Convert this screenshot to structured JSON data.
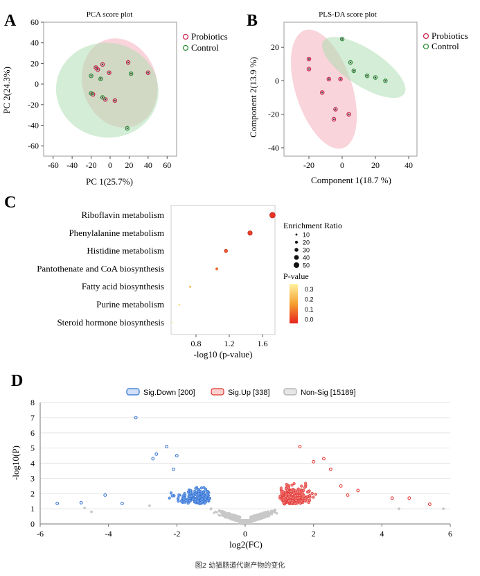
{
  "panel_labels": {
    "a": "A",
    "b": "B",
    "c": "C",
    "d": "D"
  },
  "caption": "图2  幼猫肠道代谢产物的变化",
  "colors": {
    "probiotics_fill": "#f4a9b8",
    "probiotics_stroke": "#c9264e",
    "control_fill": "#a9dcae",
    "control_stroke": "#2f8f3a",
    "sig_down": "#2f6fd0",
    "sig_up": "#e0302b",
    "non_sig": "#c8c8c8",
    "pval_high": "#fff3a0",
    "pval_low": "#e8231f"
  },
  "chart_data": [
    {
      "id": "pca",
      "type": "scatter",
      "title": "PCA score plot",
      "xlabel": "PC 1(25.7%)",
      "ylabel": "PC 2(24.3%)",
      "xlim": [
        -70,
        70
      ],
      "ylim": [
        -70,
        60
      ],
      "xticks": [
        -60,
        -40,
        -20,
        0,
        20,
        40,
        60
      ],
      "yticks": [
        -60,
        -40,
        -20,
        0,
        20,
        40,
        60
      ],
      "legend": [
        "Probiotics",
        "Control"
      ],
      "series": [
        {
          "name": "Probiotics",
          "points": [
            [
              -13,
              14
            ],
            [
              -8,
              19
            ],
            [
              -1,
              11
            ],
            [
              19,
              21
            ],
            [
              -15,
              16
            ],
            [
              40,
              11
            ],
            [
              -18,
              -10
            ],
            [
              -5,
              -15
            ],
            [
              5,
              -16
            ]
          ]
        },
        {
          "name": "Control",
          "points": [
            [
              -20,
              8
            ],
            [
              -20,
              -9
            ],
            [
              -10,
              5
            ],
            [
              -8,
              -13
            ],
            [
              22,
              10
            ],
            [
              18,
              -43
            ]
          ]
        }
      ],
      "ellipses": [
        {
          "name": "Probiotics",
          "center": [
            10,
            1
          ],
          "rx": 39,
          "ry": 44,
          "angle": 18
        },
        {
          "name": "Control",
          "center": [
            -3,
            -6
          ],
          "rx": 54,
          "ry": 46,
          "angle": -8
        }
      ]
    },
    {
      "id": "plsda",
      "type": "scatter",
      "title": "PLS-DA score plot",
      "xlabel": "Component 1(18.7 %)",
      "ylabel": "Component 2(13.9 %)",
      "xlim": [
        -35,
        45
      ],
      "ylim": [
        -45,
        35
      ],
      "xticks": [
        -20,
        0,
        20,
        40
      ],
      "yticks": [
        -40,
        -20,
        0,
        20
      ],
      "legend": [
        "Probiotics",
        "Control"
      ],
      "series": [
        {
          "name": "Probiotics",
          "points": [
            [
              -20,
              13
            ],
            [
              -20,
              7
            ],
            [
              -12,
              -7
            ],
            [
              -8,
              1
            ],
            [
              -4,
              -17
            ],
            [
              -5,
              -23
            ],
            [
              -1,
              1
            ],
            [
              4,
              -20
            ]
          ]
        },
        {
          "name": "Control",
          "points": [
            [
              0,
              25
            ],
            [
              5,
              11
            ],
            [
              7,
              6
            ],
            [
              15,
              3
            ],
            [
              20,
              2
            ],
            [
              26,
              0
            ]
          ]
        }
      ],
      "ellipses": [
        {
          "name": "Probiotics",
          "center": [
            -11,
            -5
          ],
          "rx": 17,
          "ry": 37,
          "angle": 18
        },
        {
          "name": "Control",
          "center": [
            13,
            8
          ],
          "rx": 29,
          "ry": 11,
          "angle": -33
        }
      ]
    },
    {
      "id": "enrichment",
      "type": "scatter",
      "xlabel": "-log10 (p-value)",
      "xlim": [
        0.5,
        1.75
      ],
      "xticks": [
        0.8,
        1.2,
        1.6
      ],
      "size_legend_title": "Enrichment Ratio",
      "size_legend": [
        10,
        20,
        30,
        40,
        50
      ],
      "color_legend_title": "P-value",
      "color_ticks": [
        "0.3",
        "0.2",
        "0.1",
        "0.0"
      ],
      "pathways": [
        {
          "name": "Riboflavin metabolism",
          "x": 1.72,
          "ratio": 50,
          "p": 0.02
        },
        {
          "name": "Phenylalanine metabolism",
          "x": 1.45,
          "ratio": 38,
          "p": 0.035
        },
        {
          "name": "Histidine metabolism",
          "x": 1.16,
          "ratio": 25,
          "p": 0.07
        },
        {
          "name": "Pantothenate and CoA biosynthesis",
          "x": 1.05,
          "ratio": 18,
          "p": 0.09
        },
        {
          "name": "Fatty acid biosynthesis",
          "x": 0.73,
          "ratio": 10,
          "p": 0.19
        },
        {
          "name": "Purine metabolism",
          "x": 0.6,
          "ratio": 7,
          "p": 0.25
        },
        {
          "name": "Steroid hormone biosynthesis",
          "x": 0.52,
          "ratio": 5,
          "p": 0.3
        }
      ]
    },
    {
      "id": "volcano",
      "type": "scatter",
      "xlabel": "log2(FC)",
      "ylabel": "-log10(P)",
      "xlim": [
        -6,
        6
      ],
      "ylim": [
        0,
        8
      ],
      "xticks": [
        -6,
        -4,
        -2,
        0,
        2,
        4,
        6
      ],
      "yticks": [
        0,
        1,
        2,
        3,
        4,
        5,
        6,
        7,
        8
      ],
      "legend": [
        {
          "label": "Sig.Down [200]",
          "group": "down"
        },
        {
          "label": "Sig.Up [338]",
          "group": "up"
        },
        {
          "label": "Non-Sig [15189]",
          "group": "non"
        }
      ],
      "highlight_down": [
        [
          -3.2,
          7.0
        ],
        [
          -2.3,
          5.1
        ],
        [
          -2.6,
          4.6
        ],
        [
          -2.0,
          4.5
        ],
        [
          -2.7,
          4.3
        ],
        [
          -5.5,
          1.35
        ],
        [
          -4.8,
          1.4
        ],
        [
          -4.1,
          1.9
        ],
        [
          -3.6,
          1.35
        ],
        [
          -2.1,
          3.6
        ]
      ],
      "highlight_up": [
        [
          1.6,
          5.1
        ],
        [
          2.3,
          4.3
        ],
        [
          2.0,
          4.1
        ],
        [
          2.5,
          3.6
        ],
        [
          4.3,
          1.7
        ],
        [
          4.8,
          1.7
        ],
        [
          5.4,
          1.3
        ],
        [
          2.8,
          2.5
        ],
        [
          3.3,
          2.2
        ],
        [
          3.0,
          1.9
        ]
      ],
      "highlight_non": [
        [
          -4.7,
          1.05
        ],
        [
          -4.5,
          0.8
        ],
        [
          -2.8,
          1.2
        ],
        [
          4.5,
          1.0
        ],
        [
          5.8,
          1.0
        ]
      ]
    }
  ]
}
